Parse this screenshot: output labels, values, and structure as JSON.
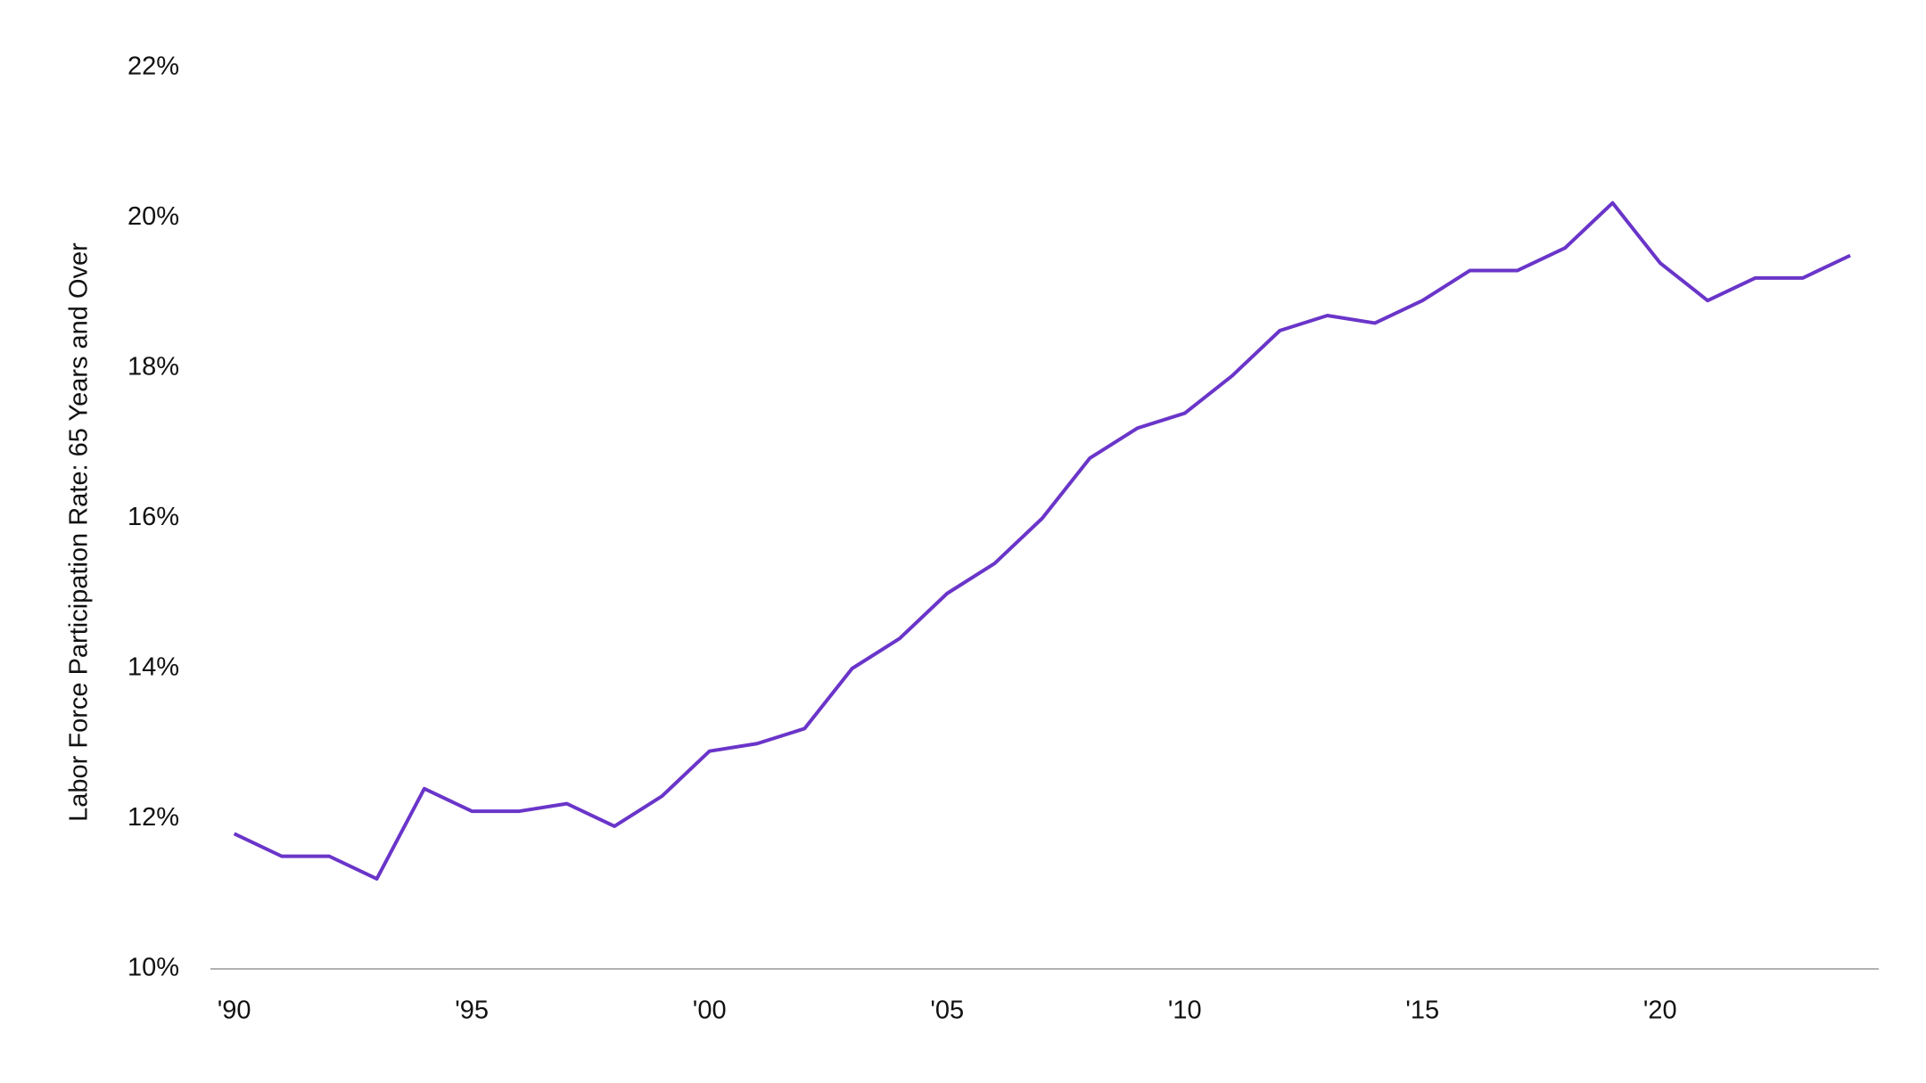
{
  "chart_data": {
    "type": "line",
    "y_label": "Labor Force Participation Rate: 65 Years and Over",
    "x": [
      1990,
      1991,
      1992,
      1993,
      1994,
      1995,
      1996,
      1997,
      1998,
      1999,
      2000,
      2001,
      2002,
      2003,
      2004,
      2005,
      2006,
      2007,
      2008,
      2009,
      2010,
      2011,
      2012,
      2013,
      2014,
      2015,
      2016,
      2017,
      2018,
      2019,
      2020,
      2021,
      2022,
      2023,
      2024
    ],
    "series": [
      {
        "color": "#6a35c9",
        "values": [
          11.8,
          11.5,
          11.5,
          11.2,
          12.4,
          12.1,
          12.1,
          12.2,
          11.9,
          12.3,
          12.9,
          13.0,
          13.2,
          14.0,
          14.4,
          15.0,
          15.4,
          16.0,
          16.8,
          17.2,
          17.4,
          17.9,
          18.5,
          18.7,
          18.6,
          18.9,
          19.3,
          19.3,
          19.6,
          20.2,
          19.4,
          18.9,
          19.2,
          19.2,
          19.5
        ]
      }
    ],
    "xlim": [
      1989.5,
      2024.6
    ],
    "xticks": [
      {
        "value": 1990,
        "label": "'90"
      },
      {
        "value": 1995,
        "label": "'95"
      },
      {
        "value": 2000,
        "label": "'00"
      },
      {
        "value": 2005,
        "label": "'05"
      },
      {
        "value": 2010,
        "label": "'10"
      },
      {
        "value": 2015,
        "label": "'15"
      },
      {
        "value": 2020,
        "label": "'20"
      }
    ],
    "ylim": [
      10,
      22
    ],
    "yticks": [
      {
        "value": 10,
        "label": "10%"
      },
      {
        "value": 12,
        "label": "12%"
      },
      {
        "value": 14,
        "label": "14%"
      },
      {
        "value": 16,
        "label": "16%"
      },
      {
        "value": 18,
        "label": "18%"
      },
      {
        "value": 20,
        "label": "20%"
      },
      {
        "value": 22,
        "label": "22%"
      }
    ],
    "grid": false
  }
}
